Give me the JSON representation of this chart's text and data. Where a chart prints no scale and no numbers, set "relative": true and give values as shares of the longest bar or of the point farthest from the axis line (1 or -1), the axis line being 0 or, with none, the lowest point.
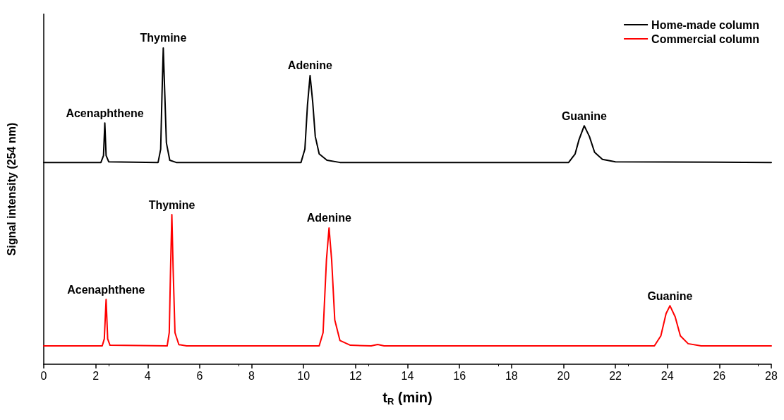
{
  "chart_data": {
    "type": "line",
    "relative": true,
    "xlabel": "t$_{R}$ (min)",
    "ylabel": "Signal intensity (254 nm)",
    "xlim": [
      0,
      28
    ],
    "xticks": [
      0,
      2,
      4,
      6,
      8,
      10,
      12,
      14,
      16,
      18,
      20,
      22,
      24,
      26,
      28
    ],
    "legend": "top right",
    "grid": false,
    "marker": "none",
    "line_style": "solid",
    "series": [
      {
        "name": "Home-made column",
        "color": "#000000",
        "x": [
          0,
          2.2,
          2.3,
          2.35,
          2.4,
          2.5,
          4.4,
          4.5,
          4.55,
          4.6,
          4.66,
          4.72,
          4.85,
          5.1,
          9.9,
          10.05,
          10.15,
          10.25,
          10.35,
          10.45,
          10.6,
          10.9,
          11.4,
          20.2,
          20.45,
          20.6,
          20.8,
          21.0,
          21.2,
          21.5,
          22.0,
          28
        ],
        "values": [
          0.638,
          0.638,
          0.66,
          0.763,
          0.66,
          0.64,
          0.638,
          0.68,
          0.85,
          1.0,
          0.85,
          0.7,
          0.645,
          0.638,
          0.638,
          0.68,
          0.82,
          0.913,
          0.83,
          0.72,
          0.665,
          0.645,
          0.638,
          0.638,
          0.665,
          0.71,
          0.754,
          0.72,
          0.67,
          0.648,
          0.64,
          0.638
        ]
      },
      {
        "name": "Commercial column",
        "color": "#ff0000",
        "x": [
          0,
          2.25,
          2.33,
          2.4,
          2.46,
          2.55,
          4.75,
          4.83,
          4.88,
          4.93,
          4.98,
          5.05,
          5.2,
          5.5,
          10.6,
          10.75,
          10.88,
          10.98,
          11.08,
          11.2,
          11.4,
          11.8,
          12.6,
          12.85,
          13.1,
          23.5,
          23.75,
          23.95,
          24.1,
          24.3,
          24.5,
          24.8,
          25.3,
          28
        ],
        "values": [
          0.058,
          0.058,
          0.08,
          0.205,
          0.08,
          0.06,
          0.058,
          0.1,
          0.3,
          0.473,
          0.3,
          0.1,
          0.062,
          0.058,
          0.058,
          0.1,
          0.33,
          0.431,
          0.33,
          0.14,
          0.075,
          0.06,
          0.058,
          0.0625,
          0.058,
          0.058,
          0.09,
          0.16,
          0.185,
          0.15,
          0.09,
          0.065,
          0.058,
          0.058
        ]
      }
    ],
    "annotations": [
      {
        "text": "Acenaphthene",
        "x": 2.35,
        "y": 0.763
      },
      {
        "text": "Thymine",
        "x": 4.6,
        "y": 1.0
      },
      {
        "text": "Adenine",
        "x": 10.25,
        "y": 0.913
      },
      {
        "text": "Guanine",
        "x": 20.8,
        "y": 0.754
      },
      {
        "text": "Acenaphthene",
        "x": 2.4,
        "y": 0.205
      },
      {
        "text": "Thymine",
        "x": 4.93,
        "y": 0.473
      },
      {
        "text": "Adenine",
        "x": 10.98,
        "y": 0.431
      },
      {
        "text": "Guanine",
        "x": 24.1,
        "y": 0.185
      }
    ]
  }
}
